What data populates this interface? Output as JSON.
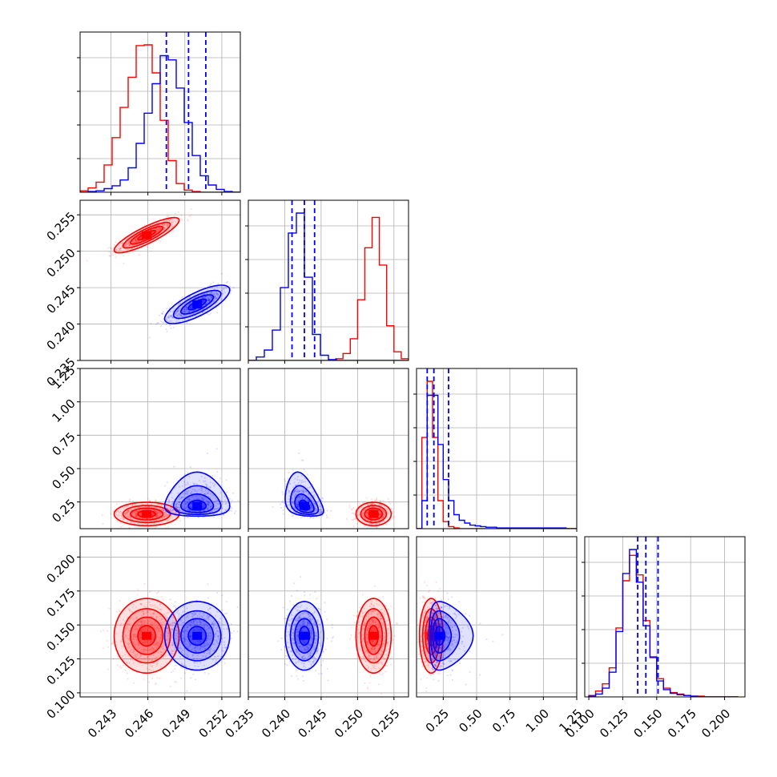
{
  "chart_data": {
    "type": "corner",
    "grid": true,
    "parameters": [
      {
        "range": [
          0.2405,
          0.2535
        ],
        "ticks": [
          0.243,
          0.246,
          0.249,
          0.252
        ],
        "tick_labels": [
          "0.243",
          "0.246",
          "0.249",
          "0.252"
        ]
      },
      {
        "range": [
          0.235,
          0.257
        ],
        "ticks": [
          0.235,
          0.24,
          0.245,
          0.25,
          0.255
        ],
        "tick_labels": [
          "0.235",
          "0.240",
          "0.245",
          "0.250",
          "0.255"
        ]
      },
      {
        "range": [
          0.05,
          1.25
        ],
        "ticks": [
          0.25,
          0.5,
          0.75,
          1.0,
          1.25
        ],
        "tick_labels": [
          "0.25",
          "0.50",
          "0.75",
          "1.00",
          "1.25"
        ]
      },
      {
        "range": [
          0.097,
          0.215
        ],
        "ticks": [
          0.1,
          0.125,
          0.15,
          0.175,
          0.2
        ],
        "tick_labels": [
          "0.100",
          "0.125",
          "0.150",
          "0.175",
          "0.200"
        ]
      }
    ],
    "series": [
      {
        "color": "#ff0000",
        "mean": [
          0.2459,
          0.2522,
          0.16,
          0.142
        ],
        "std": [
          0.0012,
          0.0011,
          0.04,
          0.0125
        ],
        "corr": [
          [
            1,
            0.85,
            0,
            0
          ],
          [
            0.85,
            1,
            0,
            0
          ],
          [
            0,
            0,
            1,
            0
          ],
          [
            0,
            0,
            0,
            1
          ]
        ],
        "skew": [
          0,
          0,
          0,
          0
        ]
      },
      {
        "color": "#0000ff",
        "mean": [
          0.25,
          0.2427,
          0.22,
          0.142
        ],
        "std": [
          0.0012,
          0.0012,
          0.09,
          0.0115
        ],
        "corr": [
          [
            1,
            0.75,
            0,
            0
          ],
          [
            0.75,
            1,
            -0.35,
            0
          ],
          [
            0,
            -0.35,
            1,
            0
          ],
          [
            0,
            0,
            0,
            1
          ]
        ],
        "skew": [
          0,
          0,
          1,
          0
        ]
      }
    ],
    "histograms": {
      "edges": [
        [
          0.2405,
          0.2535
        ],
        [
          0.235,
          0.257
        ],
        [
          0.05,
          1.25
        ],
        [
          0.1,
          0.21
        ]
      ],
      "counts": [
        [
          [
            2,
            6,
            14,
            38,
            76,
            118,
            160,
            204,
            205,
            166,
            100,
            44,
            12,
            3,
            1,
            0,
            0,
            0,
            0,
            0
          ],
          [
            0,
            1,
            2,
            5,
            9,
            17,
            34,
            68,
            110,
            151,
            190,
            184,
            145,
            97,
            51,
            23,
            10,
            4,
            1,
            0
          ]
        ],
        [
          [
            0,
            0,
            0,
            0,
            0,
            0,
            0,
            0,
            0,
            0,
            0,
            0,
            2,
            8,
            25,
            70,
            130,
            165,
            110,
            40,
            10,
            2
          ],
          [
            0,
            4,
            12,
            35,
            84,
            147,
            170,
            96,
            30,
            6,
            1,
            0,
            0,
            0,
            0,
            0,
            0,
            0,
            0,
            0
          ]
        ],
        [
          [
            0,
            130,
            210,
            130,
            40,
            10,
            3,
            1,
            0,
            0,
            0,
            0,
            0,
            0,
            0,
            0,
            0,
            0,
            0,
            0,
            0,
            0,
            0,
            0,
            0,
            0,
            0,
            0,
            0,
            0
          ],
          [
            0,
            40,
            190,
            190,
            120,
            70,
            40,
            20,
            12,
            8,
            5,
            4,
            3,
            2,
            2,
            1,
            1,
            1,
            1,
            1,
            1,
            1,
            1,
            1,
            1,
            1,
            1,
            1,
            0,
            0
          ]
        ],
        [
          [
            2,
            8,
            18,
            40,
            95,
            160,
            195,
            168,
            105,
            54,
            25,
            12,
            6,
            4,
            2,
            1,
            1,
            0,
            0,
            0,
            0,
            0
          ],
          [
            1,
            4,
            12,
            34,
            90,
            170,
            203,
            158,
            98,
            55,
            22,
            10,
            5,
            3,
            2,
            1,
            0,
            0,
            0,
            0,
            0,
            0
          ]
        ]
      ]
    },
    "quantile_lines": [
      [
        0.2475,
        0.2493,
        0.2507
      ],
      [
        0.241,
        0.2427,
        0.2441
      ],
      [
        0.13,
        0.18,
        0.29
      ],
      [
        0.136,
        0.142,
        0.151
      ]
    ]
  }
}
